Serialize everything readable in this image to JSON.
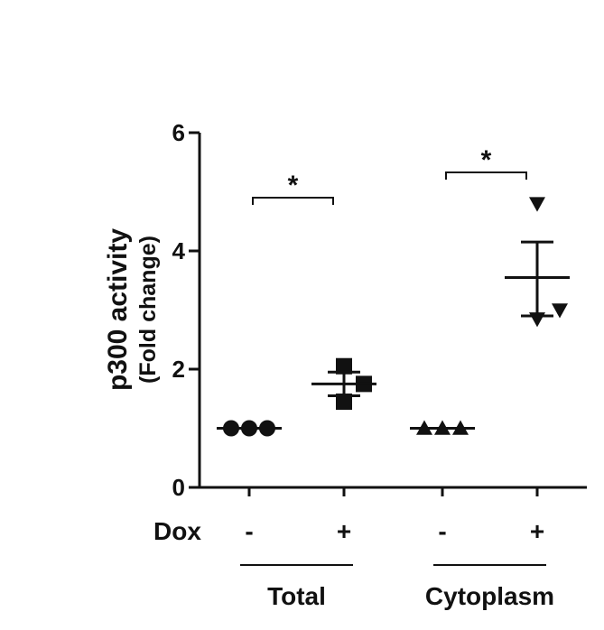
{
  "chart_data": {
    "type": "scatter",
    "title": "",
    "ylabel": "p300 activity",
    "ylabel_sub": "(Fold change)",
    "ylim": [
      0,
      6
    ],
    "yticks": [
      0,
      2,
      4,
      6
    ],
    "row_label": "Dox",
    "categories": [
      "-",
      "+",
      "-",
      "+"
    ],
    "groups": [
      {
        "label": "Total",
        "categories": [
          0,
          1
        ]
      },
      {
        "label": "Cytoplasm",
        "categories": [
          2,
          3
        ]
      }
    ],
    "series": [
      {
        "category": 0,
        "marker": "circle",
        "values": [
          1.0,
          1.0,
          1.0
        ],
        "mean": 1.0,
        "sem_low": 1.0,
        "sem_high": 1.0
      },
      {
        "category": 1,
        "marker": "square",
        "values": [
          2.05,
          1.75,
          1.45
        ],
        "mean": 1.75,
        "sem_low": 1.55,
        "sem_high": 1.95
      },
      {
        "category": 2,
        "marker": "triangle-up",
        "values": [
          1.0,
          1.0,
          1.0
        ],
        "mean": 1.0,
        "sem_low": 1.0,
        "sem_high": 1.0
      },
      {
        "category": 3,
        "marker": "triangle-down",
        "values": [
          4.8,
          3.0,
          2.85
        ],
        "mean": 3.55,
        "sem_low": 2.9,
        "sem_high": 4.15
      }
    ],
    "significance": [
      {
        "from": 0,
        "to": 1,
        "label": "*"
      },
      {
        "from": 2,
        "to": 3,
        "label": "*"
      }
    ]
  }
}
